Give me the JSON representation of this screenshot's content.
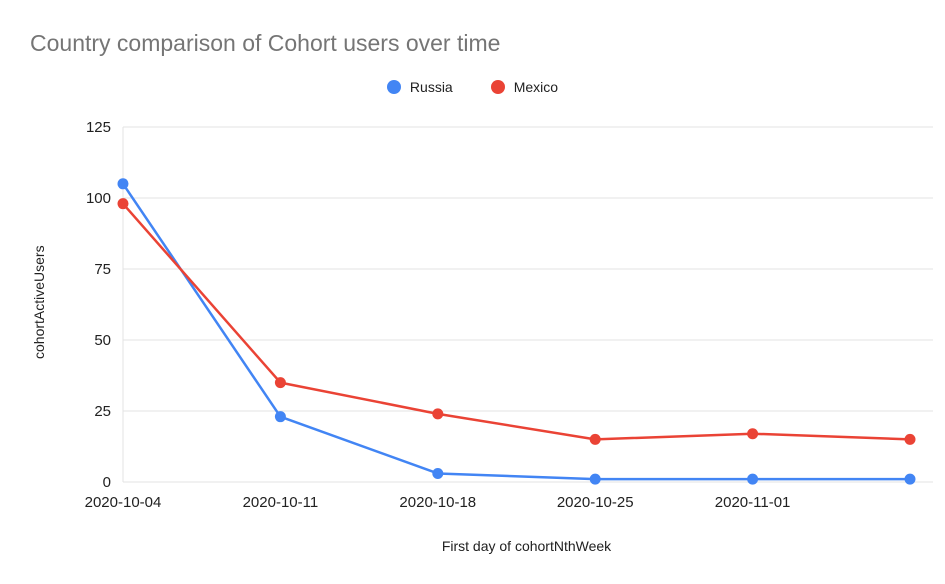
{
  "title": "Country comparison of Cohort users over time",
  "chart_data": {
    "type": "line",
    "title": "Country comparison of Cohort users over time",
    "xlabel": "First day of cohortNthWeek",
    "ylabel": "cohortActiveUsers",
    "categories": [
      "2020-10-04",
      "2020-10-11",
      "2020-10-18",
      "2020-10-25",
      "2020-11-01",
      ""
    ],
    "series": [
      {
        "name": "Russia",
        "color": "#4285F4",
        "values": [
          105,
          23,
          3,
          1,
          1,
          1
        ]
      },
      {
        "name": "Mexico",
        "color": "#EA4335",
        "values": [
          98,
          35,
          24,
          15,
          17,
          15
        ]
      }
    ],
    "ylim": [
      0,
      125
    ],
    "yticks": [
      0,
      25,
      50,
      75,
      100,
      125
    ],
    "grid": true,
    "legend_position": "top",
    "background_color": "#ffffff",
    "gridline_color": "#e3e3e3"
  }
}
